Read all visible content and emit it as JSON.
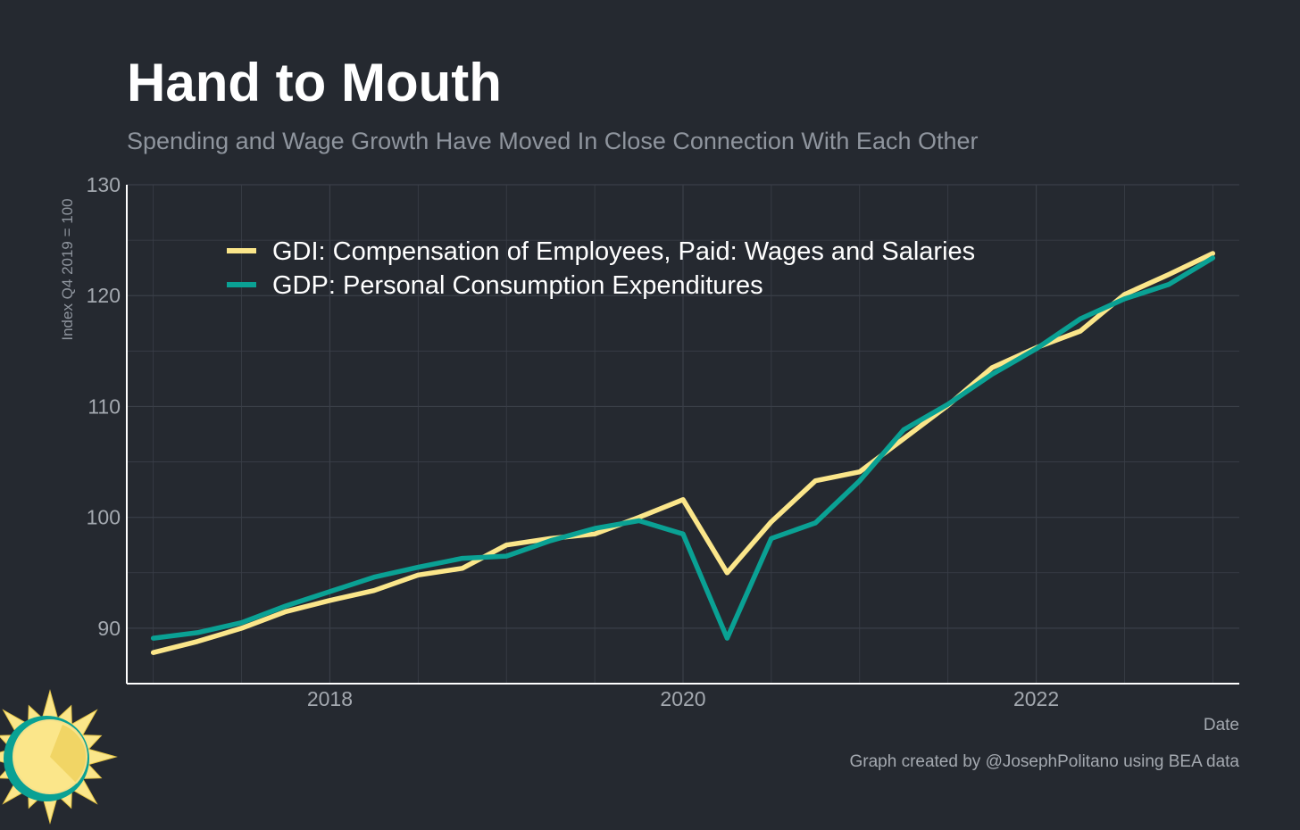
{
  "chart_data": {
    "type": "line",
    "title": "Hand to Mouth",
    "subtitle": "Spending and Wage Growth Have Moved In Close Connection With Each Other",
    "ylabel": "Index Q4 2019 = 100",
    "xlabel": "Date",
    "caption": "Graph created by @JosephPolitano using BEA data",
    "xlim": [
      2016.85,
      2023.15
    ],
    "ylim": [
      85,
      130
    ],
    "x_ticks": [
      2018,
      2020,
      2022
    ],
    "y_ticks": [
      90,
      100,
      110,
      120,
      130
    ],
    "grid": true,
    "legend_position": "top-left",
    "x": [
      2017.0,
      2017.25,
      2017.5,
      2017.75,
      2018.0,
      2018.25,
      2018.5,
      2018.75,
      2019.0,
      2019.25,
      2019.5,
      2019.75,
      2020.0,
      2020.25,
      2020.5,
      2020.75,
      2021.0,
      2021.25,
      2021.5,
      2021.75,
      2022.0,
      2022.25,
      2022.5,
      2022.75,
      2023.0
    ],
    "series": [
      {
        "name": "GDI: Compensation of Employees, Paid: Wages and Salaries",
        "color": "#fbe68a",
        "values": [
          87.8,
          88.8,
          90.0,
          91.5,
          92.5,
          93.4,
          94.8,
          95.4,
          97.5,
          98.1,
          98.5,
          100.0,
          101.6,
          95.0,
          99.6,
          103.3,
          104.1,
          107.1,
          110.1,
          113.5,
          115.3,
          116.8,
          120.1,
          121.9,
          123.8
        ]
      },
      {
        "name": "GDP: Personal Consumption Expenditures",
        "color": "#0aa194",
        "values": [
          89.1,
          89.6,
          90.5,
          92.0,
          93.3,
          94.6,
          95.5,
          96.3,
          96.5,
          97.9,
          99.0,
          99.7,
          98.5,
          89.1,
          98.1,
          99.5,
          103.3,
          107.9,
          110.2,
          112.9,
          115.2,
          117.9,
          119.7,
          121.0,
          123.4
        ]
      }
    ]
  },
  "colors": {
    "background": "#252930",
    "title": "#ffffff",
    "subtitle": "#8f959e",
    "axis_text": "#a4a9b0",
    "grid": "#3a3f48",
    "axis_line": "#ffffff",
    "logo_ring": "#0aa194",
    "logo_sun": "#fbe68a"
  },
  "logo": {
    "icon": "sun-icon"
  }
}
